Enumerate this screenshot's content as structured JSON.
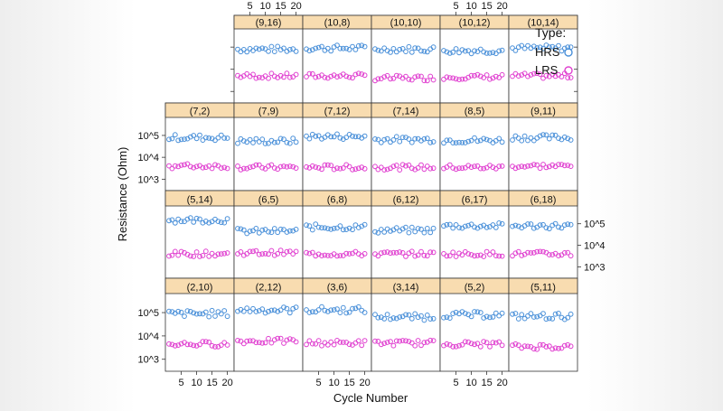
{
  "chart_data": {
    "type": "scatter",
    "layout": "trellis 6 columns x 4 rows, shared axes",
    "xlabel": "Cycle Number",
    "ylabel": "Resistance (Ohm)",
    "x_ticks": [
      5,
      10,
      15,
      20
    ],
    "y_scale": "log10",
    "y_ticks": [
      {
        "value": 1000,
        "label": "10^3"
      },
      {
        "value": 10000,
        "label": "10^4"
      },
      {
        "value": 100000,
        "label": "10^5"
      }
    ],
    "ylim": [
      400,
      500000
    ],
    "xlim": [
      1,
      21
    ],
    "legend": {
      "title": "Type:",
      "placement": "top-right"
    },
    "series": [
      {
        "name": "HRS",
        "color": "#4a90d9",
        "marker": "open-circle"
      },
      {
        "name": "LRS",
        "color": "#e040d0",
        "marker": "open-circle"
      }
    ],
    "panel_header_color": "#f8dcb0",
    "panels": [
      {
        "label": "(9,16)",
        "hrs": 80000,
        "lrs": 5000
      },
      {
        "label": "(10,8)",
        "hrs": 90000,
        "lrs": 5000
      },
      {
        "label": "(10,10)",
        "hrs": 80000,
        "lrs": 4000
      },
      {
        "label": "(10,12)",
        "hrs": 70000,
        "lrs": 4500
      },
      {
        "label": "(10,14)",
        "hrs": 90000,
        "lrs": 5000
      },
      {
        "label": "(7,2)",
        "hrs": 80000,
        "lrs": 4000
      },
      {
        "label": "(7,9)",
        "hrs": 55000,
        "lrs": 3500
      },
      {
        "label": "(7,12)",
        "hrs": 90000,
        "lrs": 3500
      },
      {
        "label": "(7,14)",
        "hrs": 65000,
        "lrs": 3500
      },
      {
        "label": "(8,5)",
        "hrs": 60000,
        "lrs": 3500
      },
      {
        "label": "(9,11)",
        "hrs": 80000,
        "lrs": 4000
      },
      {
        "label": "(5,14)",
        "hrs": 150000,
        "lrs": 4000
      },
      {
        "label": "(6,5)",
        "hrs": 45000,
        "lrs": 4500
      },
      {
        "label": "(6,8)",
        "hrs": 70000,
        "lrs": 4000
      },
      {
        "label": "(6,12)",
        "hrs": 50000,
        "lrs": 4000
      },
      {
        "label": "(6,17)",
        "hrs": 80000,
        "lrs": 4000
      },
      {
        "label": "(6,18)",
        "hrs": 80000,
        "lrs": 4000
      },
      {
        "label": "(2,10)",
        "hrs": 90000,
        "lrs": 4500
      },
      {
        "label": "(2,12)",
        "hrs": 130000,
        "lrs": 6000
      },
      {
        "label": "(3,6)",
        "hrs": 130000,
        "lrs": 5000
      },
      {
        "label": "(3,14)",
        "hrs": 65000,
        "lrs": 5000
      },
      {
        "label": "(5,2)",
        "hrs": 80000,
        "lrs": 4500
      },
      {
        "label": "(5,11)",
        "hrs": 70000,
        "lrs": 3500
      }
    ]
  }
}
